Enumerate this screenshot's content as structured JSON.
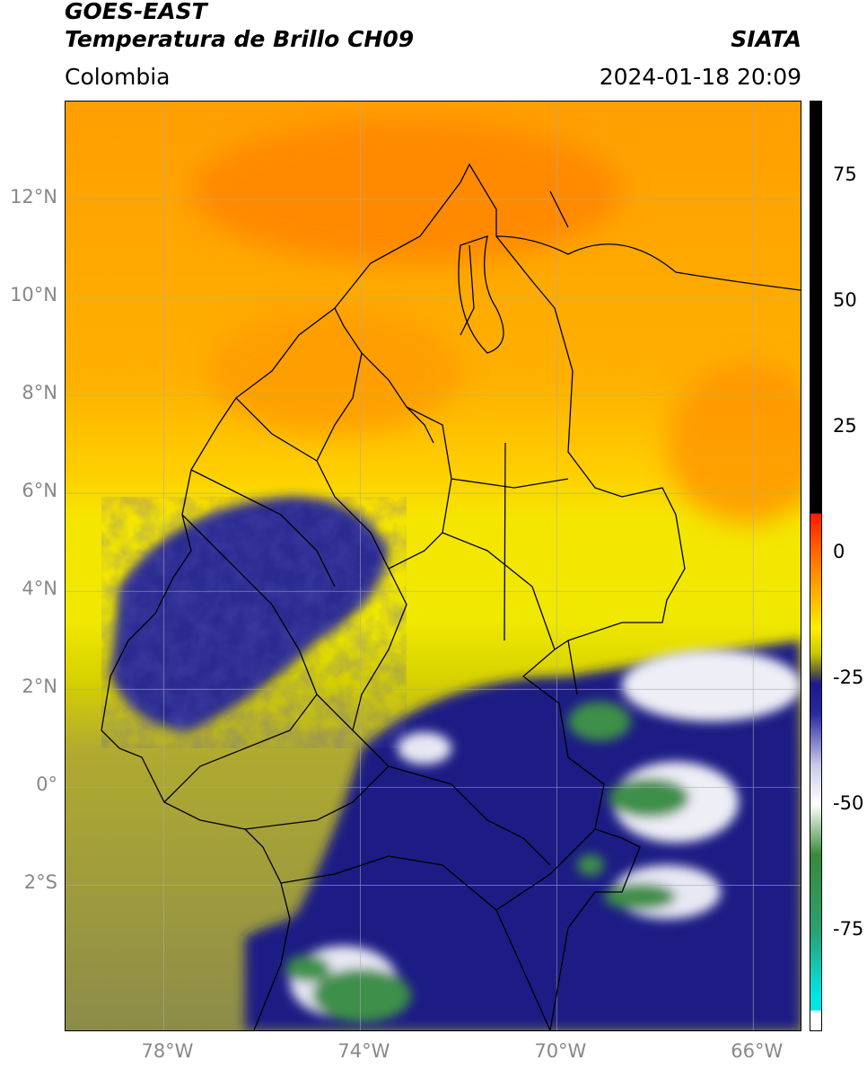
{
  "header": {
    "satellite": "GOES-EAST",
    "product": "Temperatura de Brillo CH09",
    "region": "Colombia",
    "institution": "SIATA",
    "datetime": "2024-01-18 20:09"
  },
  "map": {
    "lon_range": [
      -80,
      -65
    ],
    "lat_range": [
      -5,
      14
    ],
    "lat_ticks": [
      {
        "value": 12,
        "label": "12°N"
      },
      {
        "value": 10,
        "label": "10°N"
      },
      {
        "value": 8,
        "label": "8°N"
      },
      {
        "value": 6,
        "label": "6°N"
      },
      {
        "value": 4,
        "label": "4°N"
      },
      {
        "value": 2,
        "label": "2°N"
      },
      {
        "value": 0,
        "label": "0°"
      },
      {
        "value": -2,
        "label": "2°S"
      }
    ],
    "lon_ticks": [
      {
        "value": -78,
        "label": "78°W"
      },
      {
        "value": -74,
        "label": "74°W"
      },
      {
        "value": -70,
        "label": "70°W"
      },
      {
        "value": -66,
        "label": "66°W"
      }
    ],
    "grid": true
  },
  "colorbar": {
    "range": [
      -95,
      90
    ],
    "ticks": [
      {
        "value": 75,
        "label": "75"
      },
      {
        "value": 50,
        "label": "50"
      },
      {
        "value": 25,
        "label": "25"
      },
      {
        "value": 0,
        "label": "0"
      },
      {
        "value": -25,
        "label": "-25"
      },
      {
        "value": -50,
        "label": "-50"
      },
      {
        "value": -75,
        "label": "-75"
      }
    ],
    "stops": [
      {
        "value": 90,
        "color": "#000000"
      },
      {
        "value": 8,
        "color": "#000000"
      },
      {
        "value": 7.9,
        "color": "#ff1a00"
      },
      {
        "value": 0,
        "color": "#ff6a00"
      },
      {
        "value": -8,
        "color": "#ffb000"
      },
      {
        "value": -15,
        "color": "#ffee00"
      },
      {
        "value": -20,
        "color": "#c8c800"
      },
      {
        "value": -24,
        "color": "#555540"
      },
      {
        "value": -26,
        "color": "#1a1a8c"
      },
      {
        "value": -32,
        "color": "#2a2aa0"
      },
      {
        "value": -42,
        "color": "#c8c8e8"
      },
      {
        "value": -50,
        "color": "#ffffff"
      },
      {
        "value": -60,
        "color": "#3a8a3a"
      },
      {
        "value": -75,
        "color": "#2aa070"
      },
      {
        "value": -88,
        "color": "#00e5e5"
      },
      {
        "value": -91,
        "color": "#00e5e5"
      },
      {
        "value": -91.1,
        "color": "#ffffff"
      },
      {
        "value": -95,
        "color": "#ffffff"
      }
    ]
  },
  "colors": {
    "warm_dry": "#ff9a00",
    "yellow": "#f5e400",
    "olive": "#a6a040",
    "deep_cloud": "#1a1a82",
    "cold_top_white": "#f2f2f8",
    "cold_top_green": "#3d8f4a",
    "border_line": "#000000",
    "grid_line": "#aaaaaa"
  }
}
